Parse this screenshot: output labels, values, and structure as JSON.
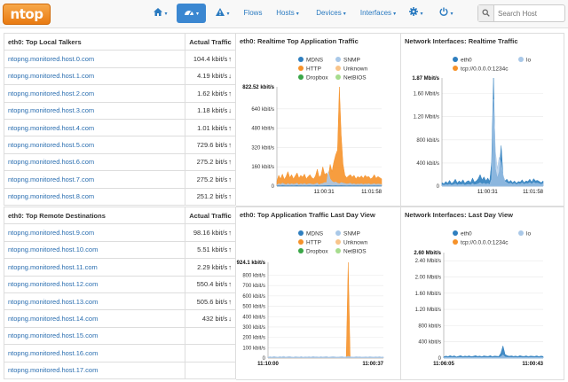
{
  "navbar": {
    "logo": "ntop",
    "home_caret": "▾",
    "dashboard_caret": "▾",
    "alerts_caret": "▾",
    "flows": "Flows",
    "hosts": "Hosts",
    "devices": "Devices",
    "interfaces": "Interfaces",
    "settings_caret": "▾",
    "power_caret": "▾",
    "search_placeholder": "Search Host"
  },
  "local_talkers": {
    "title": "eth0: Top Local Talkers",
    "col_traffic": "Actual Traffic",
    "rows": [
      {
        "host": "ntopng.monitored.host.0.com",
        "traffic": "104.4 kbit/s",
        "trend": "↑"
      },
      {
        "host": "ntopng.monitored.host.1.com",
        "traffic": "4.19 kbit/s",
        "trend": "↓"
      },
      {
        "host": "ntopng.monitored.host.2.com",
        "traffic": "1.62 kbit/s",
        "trend": "↑"
      },
      {
        "host": "ntopng.monitored.host.3.com",
        "traffic": "1.18 kbit/s",
        "trend": "↓"
      },
      {
        "host": "ntopng.monitored.host.4.com",
        "traffic": "1.01 kbit/s",
        "trend": "↑"
      },
      {
        "host": "ntopng.monitored.host.5.com",
        "traffic": "729.6 bit/s",
        "trend": "↑"
      },
      {
        "host": "ntopng.monitored.host.6.com",
        "traffic": "275.2 bit/s",
        "trend": "↑"
      },
      {
        "host": "ntopng.monitored.host.7.com",
        "traffic": "275.2 bit/s",
        "trend": "↑"
      },
      {
        "host": "ntopng.monitored.host.8.com",
        "traffic": "251.2 bit/s",
        "trend": "↑"
      }
    ]
  },
  "remote_destinations": {
    "title": "eth0: Top Remote Destinations",
    "col_traffic": "Actual Traffic",
    "rows": [
      {
        "host": "ntopng.monitored.host.9.com",
        "traffic": "98.16 kbit/s",
        "trend": "↑"
      },
      {
        "host": "ntopng.monitored.host.10.com",
        "traffic": "5.51 kbit/s",
        "trend": "↑"
      },
      {
        "host": "ntopng.monitored.host.11.com",
        "traffic": "2.29 kbit/s",
        "trend": "↑"
      },
      {
        "host": "ntopng.monitored.host.12.com",
        "traffic": "550.4 bit/s",
        "trend": "↑"
      },
      {
        "host": "ntopng.monitored.host.13.com",
        "traffic": "505.6 bit/s",
        "trend": "↑"
      },
      {
        "host": "ntopng.monitored.host.14.com",
        "traffic": "432 bit/s",
        "trend": "↓"
      },
      {
        "host": "ntopng.monitored.host.15.com",
        "traffic": "",
        "trend": ""
      },
      {
        "host": "ntopng.monitored.host.16.com",
        "traffic": "",
        "trend": ""
      },
      {
        "host": "ntopng.monitored.host.17.com",
        "traffic": "",
        "trend": ""
      }
    ]
  },
  "colors": {
    "MDNS": "#2f7fbf",
    "SNMP": "#a9c8e8",
    "HTTP": "#f6922a",
    "Unknown": "#f8c48a",
    "Dropbox": "#3aa648",
    "NetBIOS": "#a6dc8e",
    "eth0": "#2f7fbf",
    "tcp": "#f6922a",
    "lo": "#a9c8e8"
  },
  "chart_data": [
    {
      "type": "area",
      "title": "eth0: Realtime Top Application Traffic",
      "legend": [
        "MDNS",
        "SNMP",
        "HTTP",
        "Unknown",
        "Dropbox",
        "NetBIOS"
      ],
      "legend_position": "top",
      "ylabel_top": "822.52 kbit/s",
      "ytick_labels": [
        "0",
        "160 kbit/s",
        "320 kbit/s",
        "480 kbit/s",
        "640 kbit/s"
      ],
      "ytick_values": [
        0,
        160,
        320,
        480,
        640
      ],
      "ymax": 822.52,
      "xticks": [
        "11:00:31",
        "11:01:58"
      ],
      "series": [
        {
          "name": "HTTP",
          "values": [
            40,
            90,
            60,
            100,
            55,
            80,
            120,
            70,
            95,
            60,
            85,
            110,
            65,
            90,
            75,
            100,
            60,
            80,
            95,
            70,
            60,
            85,
            140,
            75,
            90,
            160,
            95,
            110,
            80,
            180,
            120,
            200,
            260,
            300,
            822,
            420,
            180,
            90,
            70,
            85,
            95,
            75,
            90,
            60,
            80,
            70,
            85,
            65,
            90,
            75,
            80,
            60,
            70,
            95,
            65,
            80,
            70,
            60
          ]
        },
        {
          "name": "SNMP",
          "values": [
            10,
            20,
            15,
            25,
            18,
            12,
            22,
            14,
            20,
            16,
            18,
            24,
            12,
            20,
            15,
            22,
            14,
            18,
            20,
            16,
            14,
            18,
            25,
            12,
            20,
            22,
            30,
            28,
            120,
            60,
            40,
            30,
            35,
            25,
            20,
            30,
            25,
            22,
            18,
            20,
            24,
            16,
            20,
            14,
            18,
            16,
            20,
            14,
            18,
            16,
            20,
            14,
            16,
            20,
            14,
            18,
            16,
            14
          ]
        },
        {
          "name": "MDNS",
          "values": [
            2,
            3,
            2,
            4,
            3,
            2,
            3,
            2,
            3,
            2,
            3,
            4,
            2,
            3,
            2,
            3,
            2,
            3,
            3,
            2,
            2,
            3,
            4,
            2,
            3,
            3,
            4,
            4,
            5,
            4,
            3,
            3,
            4,
            3,
            3,
            4,
            3,
            3,
            2,
            3,
            3,
            2,
            3,
            2,
            3,
            2,
            3,
            2,
            3,
            2,
            3,
            2,
            2,
            3,
            2,
            3,
            2,
            2
          ]
        }
      ]
    },
    {
      "type": "area",
      "title": "Network Interfaces: Realtime Traffic",
      "legend": [
        "eth0",
        "lo",
        "tcp://0.0.0.0:1234c"
      ],
      "legend_position": "top",
      "ylabel_top": "1.87 Mbit/s",
      "ytick_labels": [
        "0",
        "400 kbit/s",
        "800 kbit/s",
        "1.20 Mbit/s",
        "1.60 Mbit/s"
      ],
      "ytick_values": [
        0,
        400,
        800,
        1200,
        1600
      ],
      "ymax": 1870,
      "xticks": [
        "11:00:31",
        "11:01:58"
      ],
      "series": [
        {
          "name": "eth0",
          "values": [
            60,
            40,
            80,
            50,
            100,
            45,
            70,
            120,
            55,
            90,
            65,
            110,
            50,
            80,
            95,
            60,
            140,
            70,
            90,
            130,
            200,
            110,
            160,
            90,
            140,
            80,
            400,
            1870,
            300,
            140,
            250,
            700,
            180,
            90,
            120,
            70,
            100,
            60,
            90,
            50,
            80,
            70,
            110,
            60,
            90,
            80,
            120,
            70,
            130,
            90,
            100,
            80,
            60,
            90
          ]
        },
        {
          "name": "lo",
          "values": [
            20,
            15,
            25,
            18,
            30,
            15,
            22,
            40,
            18,
            30,
            22,
            35,
            16,
            25,
            30,
            20,
            45,
            22,
            30,
            40,
            60,
            35,
            50,
            30,
            45,
            25,
            120,
            1500,
            600,
            300,
            500,
            400,
            200,
            80,
            60,
            40,
            50,
            30,
            45,
            25,
            40,
            35,
            55,
            30,
            45,
            40,
            60,
            35,
            65,
            45,
            50,
            40,
            30,
            45
          ]
        }
      ]
    },
    {
      "type": "area",
      "title": "eth0: Top Application Traffic Last Day View",
      "legend": [
        "MDNS",
        "SNMP",
        "HTTP",
        "Unknown",
        "Dropbox",
        "NetBIOS"
      ],
      "legend_position": "top",
      "ylabel_top": "924.1 kbit/s",
      "ytick_labels": [
        "0",
        "100 kbit/s",
        "200 kbit/s",
        "300 kbit/s",
        "400 kbit/s",
        "500 kbit/s",
        "600 kbit/s",
        "700 kbit/s",
        "800 kbit/s"
      ],
      "ytick_values": [
        0,
        100,
        200,
        300,
        400,
        500,
        600,
        700,
        800
      ],
      "ymax": 924.1,
      "xticks": [
        "11:10:00",
        "11:00:37"
      ],
      "series": [
        {
          "name": "HTTP",
          "values": [
            2,
            6,
            3,
            8,
            4,
            2,
            5,
            3,
            7,
            2,
            4,
            6,
            3,
            2,
            5,
            4,
            3,
            6,
            2,
            4,
            3,
            5,
            2,
            6,
            3,
            4,
            2,
            5,
            3,
            4,
            6,
            2,
            3,
            5,
            4,
            2,
            3,
            4,
            5,
            2,
            3,
            924,
            4,
            3,
            2,
            5,
            3,
            4,
            2,
            3,
            4,
            2,
            5,
            3,
            2,
            4,
            3,
            5,
            2,
            4
          ]
        },
        {
          "name": "SNMP",
          "values": [
            8,
            14,
            10,
            16,
            12,
            9,
            15,
            11,
            17,
            10,
            13,
            16,
            11,
            9,
            14,
            12,
            10,
            15,
            9,
            13,
            11,
            14,
            10,
            16,
            12,
            13,
            10,
            14,
            11,
            13,
            15,
            9,
            12,
            14,
            13,
            10,
            11,
            13,
            14,
            10,
            12,
            18,
            13,
            11,
            10,
            14,
            12,
            13,
            10,
            11,
            13,
            10,
            14,
            12,
            10,
            13,
            11,
            14,
            10,
            12
          ]
        }
      ]
    },
    {
      "type": "area",
      "title": "Network Interfaces: Last Day View",
      "legend": [
        "eth0",
        "lo",
        "tcp://0.0.0.0:1234c"
      ],
      "legend_position": "top",
      "ylabel_top": "2.60 Mbit/s",
      "ytick_labels": [
        "0",
        "400 kbit/s",
        "800 kbit/s",
        "1.20 Mbit/s",
        "1.60 Mbit/s",
        "2.00 Mbit/s",
        "2.40 Mbit/s"
      ],
      "ytick_values": [
        0,
        400,
        800,
        1200,
        1600,
        2000,
        2400
      ],
      "ymax": 2600,
      "xticks": [
        "11:06:05",
        "11:00:43"
      ],
      "series": [
        {
          "name": "eth0",
          "values": [
            30,
            50,
            35,
            60,
            40,
            55,
            30,
            45,
            60,
            35,
            50,
            40,
            55,
            35,
            45,
            60,
            40,
            50,
            35,
            55,
            45,
            40,
            60,
            35,
            50,
            45,
            40,
            120,
            300,
            90,
            60,
            45,
            55,
            40,
            50,
            35,
            60,
            45,
            40,
            55,
            35,
            50,
            45,
            40,
            55,
            35,
            50,
            40
          ]
        },
        {
          "name": "lo",
          "values": [
            10,
            15,
            12,
            18,
            14,
            16,
            10,
            14,
            18,
            12,
            15,
            13,
            16,
            12,
            14,
            18,
            13,
            15,
            12,
            16,
            14,
            13,
            18,
            12,
            15,
            14,
            13,
            30,
            80,
            25,
            18,
            14,
            16,
            13,
            15,
            12,
            18,
            14,
            13,
            16,
            12,
            15,
            14,
            13,
            16,
            12,
            15,
            13
          ]
        }
      ]
    }
  ]
}
